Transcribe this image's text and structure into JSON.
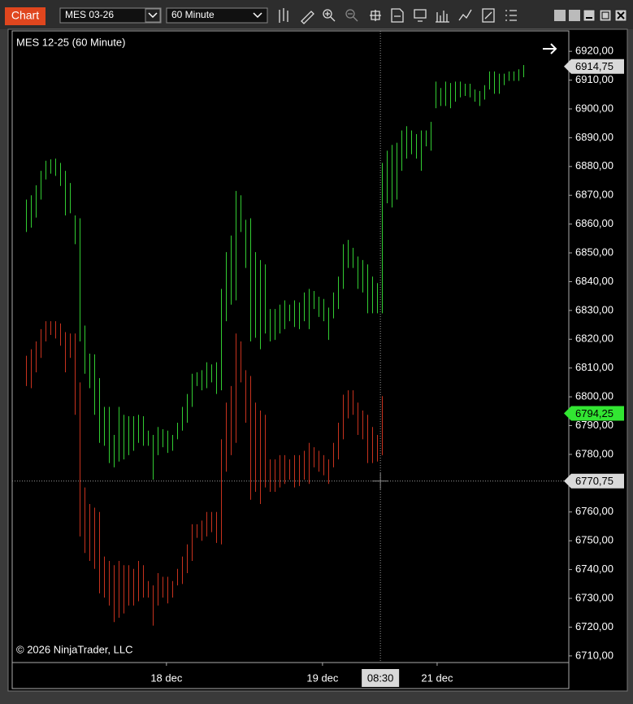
{
  "toolbar": {
    "tab": "Chart",
    "instrument": "MES 03-26",
    "interval": "60 Minute"
  },
  "chart_data": {
    "type": "ohlc",
    "title": "MES 12-25 (60 Minute)",
    "copyright": "© 2026 NinjaTrader, LLC",
    "xlim": [
      -2.83,
      111.3
    ],
    "ylim": [
      6707.7,
      6927.1
    ],
    "xticks": [
      {
        "value": 28.8,
        "label": "18 dec"
      },
      {
        "value": 60.8,
        "label": "19 dec"
      },
      {
        "value": 84.3,
        "label": "21 dec"
      }
    ],
    "yticks": [
      {
        "value": 6710,
        "label": "6710,00"
      },
      {
        "value": 6720,
        "label": "6720,00"
      },
      {
        "value": 6730,
        "label": "6730,00"
      },
      {
        "value": 6740,
        "label": "6740,00"
      },
      {
        "value": 6750,
        "label": "6750,00"
      },
      {
        "value": 6760,
        "label": "6760,00"
      },
      {
        "value": 6770,
        "label": "6770,00"
      },
      {
        "value": 6780,
        "label": "6780,00"
      },
      {
        "value": 6790,
        "label": "6790,00"
      },
      {
        "value": 6800,
        "label": "6800,00"
      },
      {
        "value": 6810,
        "label": "6810,00"
      },
      {
        "value": 6820,
        "label": "6820,00"
      },
      {
        "value": 6830,
        "label": "6830,00"
      },
      {
        "value": 6840,
        "label": "6840,00"
      },
      {
        "value": 6850,
        "label": "6850,00"
      },
      {
        "value": 6860,
        "label": "6860,00"
      },
      {
        "value": 6870,
        "label": "6870,00"
      },
      {
        "value": 6880,
        "label": "6880,00"
      },
      {
        "value": 6890,
        "label": "6890,00"
      },
      {
        "value": 6900,
        "label": "6900,00"
      },
      {
        "value": 6910,
        "label": "6910,00"
      },
      {
        "value": 6920,
        "label": "6920,00"
      }
    ],
    "series": [
      {
        "color": "#32cd32",
        "high": [
          6868.5,
          6870,
          6873.5,
          6878.5,
          6882,
          6882.5,
          6882.75,
          6881.25,
          6878.5,
          6874.25,
          6863,
          6862,
          6824.75,
          6815,
          6814.75,
          6806.5,
          6796.5,
          6796.5,
          6786.75,
          6796.5,
          6793.75,
          6793.25,
          6793.25,
          6793.75,
          6793.25,
          6788.25,
          6786.75,
          6789.5,
          6788.75,
          6788.25,
          6786.75,
          6791,
          6796.5,
          6801,
          6808,
          6808.5,
          6809.25,
          6812,
          6811.25,
          6812,
          6837.5,
          6850.25,
          6856,
          6871.5,
          6870,
          6861.5,
          6862,
          6850.25,
          6847.5,
          6846,
          6830.5,
          6830.5,
          6832,
          6833.5,
          6832,
          6833.5,
          6832.75,
          6836.25,
          6837.5,
          6836.75,
          6834.75,
          6834,
          6831,
          6836.25,
          6841.75,
          6853,
          6854.5,
          6851.75,
          6848.75,
          6847.5,
          6846,
          6841.75,
          6839.5,
          6881.25,
          6885.5,
          6887.5,
          6888.25,
          6892.5,
          6894,
          6892.5,
          6891.25,
          6892.5,
          6892.5,
          6895.5,
          6909.5,
          6907.25,
          6909.5,
          6909,
          6909.5,
          6909.5,
          6908.75,
          6908.75,
          6906.75,
          6906.25,
          6908.25,
          6913,
          6913,
          6912.25,
          6912.25,
          6913,
          6913,
          6913.75,
          6915.25
        ],
        "low": [
          6857.25,
          6858.75,
          6862.25,
          6868.5,
          6875.5,
          6877.5,
          6876.75,
          6873.25,
          6863,
          6863.75,
          6853,
          6819.25,
          6808,
          6803,
          6793.75,
          6784,
          6783,
          6777,
          6775.5,
          6777.5,
          6778.25,
          6779.75,
          6781.25,
          6784,
          6783,
          6783,
          6771.25,
          6779.75,
          6782.5,
          6780.5,
          6781.25,
          6785.25,
          6788.25,
          6791,
          6796.5,
          6803.75,
          6802.25,
          6803,
          6805,
          6801,
          6802.25,
          6826.25,
          6832,
          6833.5,
          6857.25,
          6844.75,
          6819.25,
          6820.5,
          6816.5,
          6822,
          6819.25,
          6819.75,
          6822,
          6823.5,
          6826.25,
          6824.25,
          6823.5,
          6826.25,
          6823.5,
          6830.5,
          6827.75,
          6826.25,
          6819.75,
          6827.25,
          6830.5,
          6837.5,
          6844.75,
          6844.75,
          6837.5,
          6836.25,
          6829,
          6829,
          6829,
          6829,
          6867.25,
          6865.75,
          6868.5,
          6878.5,
          6882.75,
          6884.25,
          6882.75,
          6878.5,
          6887,
          6885.5,
          6900.25,
          6901,
          6901,
          6900.25,
          6902.5,
          6904,
          6904.5,
          6904,
          6902.5,
          6901,
          6903.25,
          6906.75,
          6905.25,
          6905.25,
          6908.25,
          6909.75,
          6909.75,
          6909.75,
          6911
        ]
      },
      {
        "color": "#c8321e",
        "high": [
          6814.25,
          6816.5,
          6819.25,
          6823.5,
          6826.25,
          6826.25,
          6826.25,
          6825.5,
          6822.5,
          6822,
          6822,
          6805,
          6768.5,
          6762.75,
          6761.5,
          6760,
          6744.5,
          6743,
          6741.5,
          6743,
          6741.5,
          6741.5,
          6740.25,
          6743,
          6741.5,
          6736,
          6734.5,
          6738.75,
          6737.5,
          6737.5,
          6736,
          6740.25,
          6744.5,
          6748.75,
          6755.75,
          6755.75,
          6757,
          6760,
          6760,
          6760,
          6785.25,
          6798,
          6803.75,
          6822,
          6819.25,
          6809.25,
          6807.25,
          6798,
          6795.25,
          6793.75,
          6778.25,
          6778.25,
          6779.75,
          6779.75,
          6778.25,
          6779.75,
          6779.75,
          6781.25,
          6784,
          6782.5,
          6781.25,
          6779.75,
          6778.25,
          6784,
          6791,
          6800.75,
          6802.25,
          6802.25,
          6798,
          6795.25,
          6793.75,
          6789.5,
          6786.75,
          6800.25
        ],
        "low": [
          6803.75,
          6803,
          6808.5,
          6813.5,
          6819.25,
          6821.5,
          6820.25,
          6817.75,
          6808.5,
          6813.5,
          6793.75,
          6751.5,
          6745.75,
          6743,
          6740.25,
          6731.75,
          6730.25,
          6727.5,
          6721.75,
          6723.25,
          6724.75,
          6727.5,
          6727.5,
          6729,
          6730.25,
          6730.25,
          6720.5,
          6727.5,
          6730.25,
          6728.25,
          6730.25,
          6734.5,
          6735,
          6738.75,
          6743,
          6751,
          6750,
          6751.5,
          6753,
          6749.25,
          6748.75,
          6774,
          6779.75,
          6784,
          6805,
          6791,
          6764.25,
          6767,
          6762.75,
          6768.5,
          6767,
          6767,
          6768.5,
          6769.75,
          6771.25,
          6768.5,
          6769,
          6771.25,
          6769.75,
          6775.5,
          6774,
          6772.75,
          6769.75,
          6775.5,
          6778.25,
          6785.25,
          6792.5,
          6793.75,
          6786.75,
          6785.25,
          6777,
          6777,
          6777.5,
          6779.75
        ]
      }
    ],
    "price_markers": [
      {
        "value": 6914.75,
        "label": "6914,75",
        "color": "#d9d9d9"
      },
      {
        "value": 6794.25,
        "label": "6794,25",
        "color": "#32e632"
      }
    ],
    "crosshair": {
      "x": {
        "value": 72.67,
        "label": "08:30"
      },
      "y": {
        "value": 6770.75,
        "label": "6770,75"
      }
    }
  }
}
